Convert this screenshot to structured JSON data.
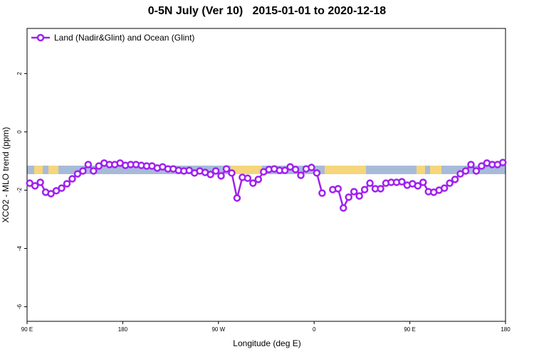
{
  "chart_data": {
    "type": "line",
    "title": "0-5N July (Ver 10)   2015-01-01 to 2020-12-18",
    "x_label": "Longitude (deg E)",
    "y_label": "XCO2 - MLO trend (ppm)",
    "x": [
      92.5,
      97.5,
      102.5,
      107.5,
      112.5,
      117.5,
      122.5,
      127.5,
      132.5,
      137.5,
      142.5,
      147.5,
      152.5,
      157.5,
      162.5,
      167.5,
      172.5,
      177.5,
      182.5,
      187.5,
      192.5,
      197.5,
      202.5,
      207.5,
      212.5,
      217.5,
      222.5,
      227.5,
      232.5,
      237.5,
      242.5,
      247.5,
      252.5,
      257.5,
      262.5,
      267.5,
      272.5,
      277.5,
      282.5,
      287.5,
      292.5,
      297.5,
      302.5,
      307.5,
      312.5,
      317.5,
      322.5,
      327.5,
      332.5,
      337.5,
      342.5,
      347.5,
      352.5,
      357.5,
      362.5,
      367.5,
      372.5,
      377.5,
      382.5,
      387.5,
      392.5,
      397.5,
      402.5,
      407.5,
      412.5,
      417.5,
      422.5,
      427.5,
      432.5,
      437.5,
      442.5,
      447.5,
      452.5,
      457.5,
      462.5,
      467.5,
      472.5,
      477.5,
      482.5,
      487.5,
      492.5,
      497.5,
      502.5,
      507.5,
      512.5,
      517.5,
      522.5,
      527.5,
      532.5,
      537.5
    ],
    "series": [
      {
        "name": "Land (Nadir&Glint) and Ocean (Glint)",
        "color": "#a020f0",
        "values": [
          -1.76,
          -1.85,
          -1.73,
          -2.07,
          -2.12,
          -2.02,
          -1.93,
          -1.78,
          -1.61,
          -1.44,
          -1.34,
          -1.12,
          -1.34,
          -1.17,
          -1.07,
          -1.12,
          -1.12,
          -1.07,
          -1.15,
          -1.12,
          -1.12,
          -1.15,
          -1.17,
          -1.17,
          -1.24,
          -1.2,
          -1.27,
          -1.27,
          -1.32,
          -1.34,
          -1.32,
          -1.41,
          -1.34,
          -1.39,
          -1.46,
          -1.34,
          -1.51,
          -1.27,
          -1.41,
          -2.27,
          -1.56,
          -1.59,
          -1.76,
          -1.63,
          -1.37,
          -1.29,
          -1.27,
          -1.32,
          -1.32,
          -1.2,
          -1.29,
          -1.49,
          -1.27,
          -1.22,
          -1.41,
          -2.1,
          null,
          -1.98,
          -1.95,
          -2.61,
          -2.24,
          -2.05,
          -2.2,
          -1.98,
          -1.76,
          -1.95,
          -1.95,
          -1.76,
          -1.73,
          -1.73,
          -1.71,
          -1.83,
          -1.78,
          -1.85,
          -1.73,
          -2.05,
          -2.07,
          -2.0,
          -1.93,
          -1.76,
          -1.63,
          -1.44,
          -1.34,
          -1.12,
          -1.34,
          -1.17,
          -1.07,
          -1.12,
          -1.12,
          -1.05
        ]
      }
    ],
    "xlim": [
      90,
      540
    ],
    "xticks": [
      {
        "value": 90,
        "label": "90 E"
      },
      180,
      {
        "value": 270,
        "label": "90 W"
      },
      {
        "value": 360,
        "label": "0"
      },
      {
        "value": 450,
        "label": "90 E"
      },
      {
        "value": 540,
        "label": "180"
      }
    ],
    "ylim": [
      -6.5,
      3.55
    ],
    "yticks": [
      -6,
      -4,
      -2,
      0,
      2
    ],
    "grid": false,
    "legend": "top-left"
  }
}
